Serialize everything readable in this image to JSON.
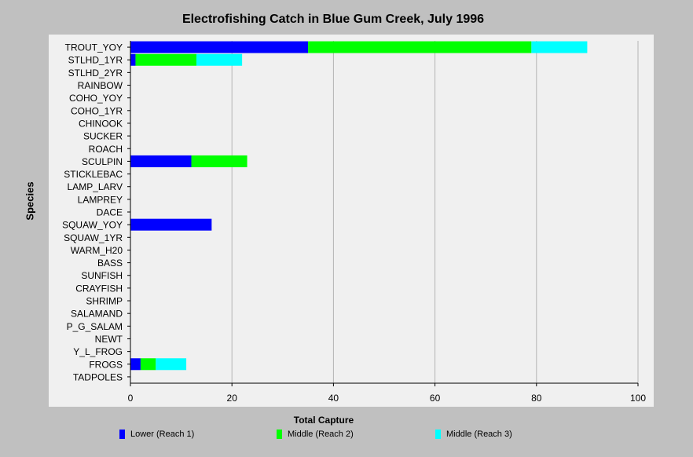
{
  "chart_data": {
    "type": "bar",
    "orientation": "horizontal",
    "stacked": true,
    "title": "Electrofishing Catch in Blue Gum Creek, July 1996",
    "xlabel": "Total Capture",
    "ylabel": "Species",
    "xlim": [
      0,
      100
    ],
    "xticks": [
      0,
      20,
      40,
      60,
      80,
      100
    ],
    "grid": true,
    "legend_position": "bottom",
    "categories": [
      "TROUT_YOY",
      "STLHD_1YR",
      "STLHD_2YR",
      "RAINBOW",
      "COHO_YOY",
      "COHO_1YR",
      "CHINOOK",
      "SUCKER",
      "ROACH",
      "SCULPIN",
      "STICKLEBAC",
      "LAMP_LARV",
      "LAMPREY",
      "DACE",
      "SQUAW_YOY",
      "SQUAW_1YR",
      "WARM_H20",
      "BASS",
      "SUNFISH",
      "CRAYFISH",
      "SHRIMP",
      "SALAMAND",
      "P_G_SALAM",
      "NEWT",
      "Y_L_FROG",
      "FROGS",
      "TADPOLES"
    ],
    "series": [
      {
        "name": "Lower (Reach 1)",
        "color": "#0000ff",
        "values": [
          35,
          1,
          0,
          0,
          0,
          0,
          0,
          0,
          0,
          12,
          0,
          0,
          0,
          0,
          16,
          0,
          0,
          0,
          0,
          0,
          0,
          0,
          0,
          0,
          0,
          2,
          0
        ]
      },
      {
        "name": "Middle (Reach 2)",
        "color": "#00ff00",
        "values": [
          44,
          12,
          0,
          0,
          0,
          0,
          0,
          0,
          0,
          11,
          0,
          0,
          0,
          0,
          0,
          0,
          0,
          0,
          0,
          0,
          0,
          0,
          0,
          0,
          0,
          3,
          0
        ]
      },
      {
        "name": "Middle (Reach 3)",
        "color": "#00ffff",
        "values": [
          11,
          9,
          0,
          0,
          0,
          0,
          0,
          0,
          0,
          0,
          0,
          0,
          0,
          0,
          0,
          0,
          0,
          0,
          0,
          0,
          0,
          0,
          0,
          0,
          0,
          6,
          0
        ]
      }
    ]
  }
}
